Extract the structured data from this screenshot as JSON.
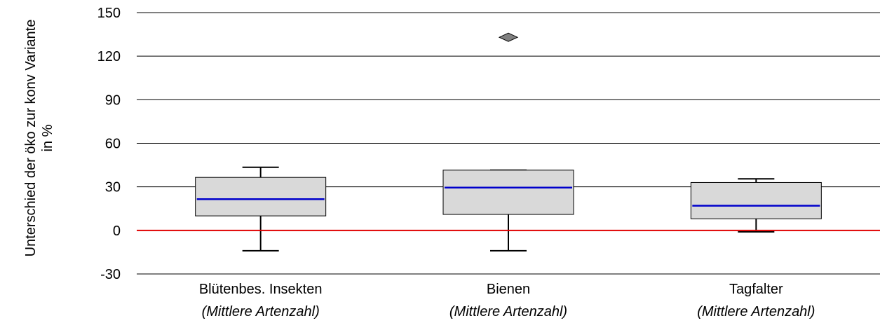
{
  "chart_data": {
    "type": "boxplot",
    "ylabel_lines": [
      "Unterschied der öko zur konv Variante",
      "in %"
    ],
    "ylim": [
      -30,
      150
    ],
    "yticks": [
      -30,
      0,
      30,
      60,
      90,
      120,
      150
    ],
    "grid": true,
    "reference_line": {
      "value": 0,
      "color": "#e00000"
    },
    "box_fill": "#d9d9d9",
    "median_color": "#0000cc",
    "outlier_color": "#808080",
    "categories": [
      {
        "label": "Blütenbes. Insekten",
        "sublabel": "(Mittlere Artenzahl)"
      },
      {
        "label": "Bienen",
        "sublabel": "(Mittlere Artenzahl)"
      },
      {
        "label": "Tagfalter",
        "sublabel": "(Mittlere Artenzahl)"
      }
    ],
    "boxes": [
      {
        "whisker_low": -14,
        "q1": 10,
        "median": 21.5,
        "q3": 36.5,
        "whisker_high": 43.5,
        "outliers": []
      },
      {
        "whisker_low": -14,
        "q1": 11,
        "median": 29.5,
        "q3": 41.5,
        "whisker_high": 41.5,
        "outliers": [
          133
        ]
      },
      {
        "whisker_low": -1,
        "q1": 8,
        "median": 17,
        "q3": 33,
        "whisker_high": 35.5,
        "outliers": []
      }
    ]
  }
}
